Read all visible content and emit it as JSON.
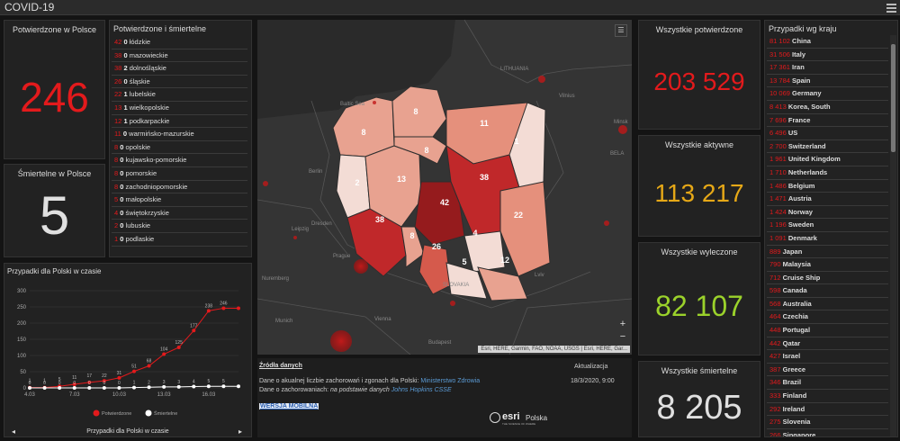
{
  "app": {
    "title": "COVID-19"
  },
  "poland_confirmed": {
    "title": "Potwierdzone w Polsce",
    "value": "246"
  },
  "poland_deaths": {
    "title": "Śmiertelne w Polsce",
    "value": "5"
  },
  "voivodeships": {
    "title": "Potwierdzone i śmiertelne",
    "items": [
      {
        "c": "42",
        "d": "0",
        "name": "łódzkie"
      },
      {
        "c": "38",
        "d": "0",
        "name": "mazowieckie"
      },
      {
        "c": "38",
        "d": "2",
        "name": "dolnośląskie"
      },
      {
        "c": "26",
        "d": "0",
        "name": "śląskie"
      },
      {
        "c": "22",
        "d": "1",
        "name": "lubelskie"
      },
      {
        "c": "13",
        "d": "1",
        "name": "wielkopolskie"
      },
      {
        "c": "12",
        "d": "1",
        "name": "podkarpackie"
      },
      {
        "c": "11",
        "d": "0",
        "name": "warmińsko-mazurskie"
      },
      {
        "c": "8",
        "d": "0",
        "name": "opolskie"
      },
      {
        "c": "8",
        "d": "0",
        "name": "kujawsko-pomorskie"
      },
      {
        "c": "8",
        "d": "0",
        "name": "pomorskie"
      },
      {
        "c": "8",
        "d": "0",
        "name": "zachodniopomorskie"
      },
      {
        "c": "5",
        "d": "0",
        "name": "małopolskie"
      },
      {
        "c": "4",
        "d": "0",
        "name": "świętokrzyskie"
      },
      {
        "c": "2",
        "d": "0",
        "name": "lubuskie"
      },
      {
        "c": "1",
        "d": "0",
        "name": "podlaskie"
      }
    ]
  },
  "map": {
    "cities": [
      "LITHUANIA",
      "Minsk",
      "BELA",
      "Berlin",
      "Dresden",
      "Leipzig",
      "Prague",
      "Vienna",
      "Budapest",
      "Munich",
      "Nuremberg",
      "SLOVAKIA",
      "Baltic Sea",
      "Vilnius",
      "Lviv"
    ],
    "region_labels": [
      "8",
      "8",
      "11",
      "1",
      "2",
      "13",
      "8",
      "38",
      "42",
      "22",
      "38",
      "8",
      "4",
      "26",
      "5",
      "12"
    ],
    "attribution": "Esri, HERE, Garmin, FAO, NOAA, USGS | Esri, HERE, Gar...",
    "zoom_in": "+",
    "zoom_out": "−"
  },
  "totals": {
    "confirmed": {
      "title": "Wszystkie potwierdzone",
      "value": "203 529",
      "color": "#e31a1c"
    },
    "active": {
      "title": "Wszystkie aktywne",
      "value": "113 217",
      "color": "#e6a817"
    },
    "recovered": {
      "title": "Wszystkie wyleczone",
      "value": "82 107",
      "color": "#9bd22b"
    },
    "deaths": {
      "title": "Wszystkie śmiertelne",
      "value": "8 205",
      "color": "#e0e0e0"
    }
  },
  "countries": {
    "title": "Przypadki wg kraju",
    "items": [
      {
        "v": "81 102",
        "name": "China"
      },
      {
        "v": "31 506",
        "name": "Italy"
      },
      {
        "v": "17 361",
        "name": "Iran"
      },
      {
        "v": "13 784",
        "name": "Spain"
      },
      {
        "v": "10 069",
        "name": "Germany"
      },
      {
        "v": "8 413",
        "name": "Korea, South"
      },
      {
        "v": "7 696",
        "name": "France"
      },
      {
        "v": "6 496",
        "name": "US"
      },
      {
        "v": "2 700",
        "name": "Switzerland"
      },
      {
        "v": "1 961",
        "name": "United Kingdom"
      },
      {
        "v": "1 710",
        "name": "Netherlands"
      },
      {
        "v": "1 486",
        "name": "Belgium"
      },
      {
        "v": "1 471",
        "name": "Austria"
      },
      {
        "v": "1 424",
        "name": "Norway"
      },
      {
        "v": "1 196",
        "name": "Sweden"
      },
      {
        "v": "1 091",
        "name": "Denmark"
      },
      {
        "v": "889",
        "name": "Japan"
      },
      {
        "v": "790",
        "name": "Malaysia"
      },
      {
        "v": "712",
        "name": "Cruise Ship"
      },
      {
        "v": "598",
        "name": "Canada"
      },
      {
        "v": "568",
        "name": "Australia"
      },
      {
        "v": "464",
        "name": "Czechia"
      },
      {
        "v": "448",
        "name": "Portugal"
      },
      {
        "v": "442",
        "name": "Qatar"
      },
      {
        "v": "427",
        "name": "Israel"
      },
      {
        "v": "387",
        "name": "Greece"
      },
      {
        "v": "346",
        "name": "Brazil"
      },
      {
        "v": "333",
        "name": "Finland"
      },
      {
        "v": "292",
        "name": "Ireland"
      },
      {
        "v": "275",
        "name": "Slovenia"
      },
      {
        "v": "266",
        "name": "Singapore"
      }
    ]
  },
  "chart_data": {
    "type": "line",
    "title": "Przypadki dla Polski w czasie",
    "footer": "Przypadki dla Polski w czasie",
    "categories": [
      "4.03",
      "5.03",
      "6.03",
      "7.03",
      "8.03",
      "9.03",
      "10.03",
      "11.03",
      "12.03",
      "13.03",
      "14.03",
      "15.03",
      "16.03",
      "17.03",
      "18.03"
    ],
    "tick_labels": [
      "4.03",
      "7.03",
      "10.03",
      "13.03",
      "16.03"
    ],
    "yticks": [
      0,
      50,
      100,
      150,
      200,
      250,
      300
    ],
    "ylim": [
      0,
      300
    ],
    "series": [
      {
        "name": "Potwierdzone",
        "color": "#e31a1c",
        "values": [
          1,
          1,
          5,
          11,
          17,
          22,
          31,
          51,
          68,
          104,
          125,
          177,
          238,
          246,
          246
        ],
        "labels": [
          "1",
          "1",
          "5",
          "11",
          "17",
          "22",
          "31",
          "51",
          "68",
          "104",
          "125",
          "177",
          "238",
          "246",
          ""
        ]
      },
      {
        "name": "Śmiertelne",
        "color": "#ffffff",
        "values": [
          0,
          0,
          0,
          0,
          0,
          0,
          0,
          1,
          2,
          3,
          3,
          4,
          5,
          5,
          5
        ],
        "labels": [
          "0",
          "0",
          "0",
          "0",
          "0",
          "0",
          "0",
          "1",
          "2",
          "3",
          "3",
          "4",
          "5",
          "5",
          ""
        ]
      }
    ],
    "grid": true,
    "legend": "bottom"
  },
  "sources": {
    "title": "Źródła danych",
    "update_title": "Aktualizacja",
    "update_value": "18/3/2020, 9:00",
    "line1_prefix": "Dane o akualnej liczbie zachorowań i zgonach dla Polski: ",
    "line1_link": "Ministerstwo Zdrowia",
    "line2_prefix": "Dane o zachorowaniach: ",
    "line2_italic": "na podstawie danych ",
    "line2_link": "Johns Hopkins CSSE",
    "mobile": "WERSJA MOBILNA",
    "logo": "esri",
    "logo_sub": "Polska",
    "logo_tag": "THE SCIENCE OF WHERE"
  }
}
